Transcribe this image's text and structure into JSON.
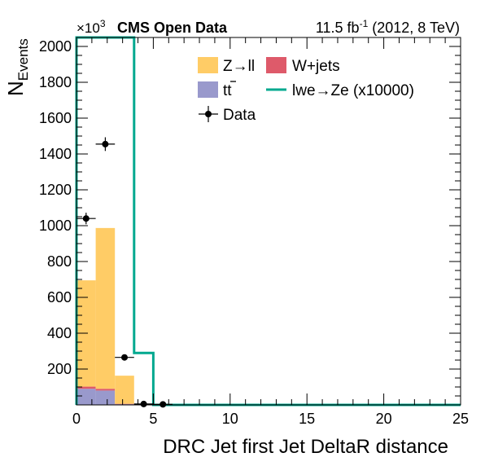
{
  "header": {
    "exponent_prefix": "×10",
    "exponent_power": "3",
    "experiment": "CMS Open Data",
    "lumi_value": "11.5 fb",
    "lumi_power": "-1",
    "lumi_rest": " (2012, 8 TeV)"
  },
  "chart_data": {
    "type": "bar",
    "title": "",
    "xlabel": "DRC Jet first Jet DeltaR distance",
    "ylabel_main": "N",
    "ylabel_sub": "Events",
    "xlim": [
      0,
      25
    ],
    "ylim": [
      0,
      2050
    ],
    "y_scale_note": "×10^3",
    "xticks": [
      0,
      5,
      10,
      15,
      20,
      25
    ],
    "yticks": [
      200,
      400,
      600,
      800,
      1000,
      1200,
      1400,
      1600,
      1800,
      2000
    ],
    "bin_edges": [
      0,
      1.25,
      2.5,
      3.75,
      5.0
    ],
    "stack": [
      {
        "name": "t̅t",
        "name_main": "t",
        "name_bar": "t",
        "color": "#9999cc",
        "values": [
          90,
          80,
          5,
          0
        ]
      },
      {
        "name": "W+jets",
        "color": "#de5a6a",
        "values": [
          12,
          10,
          1,
          0
        ]
      },
      {
        "name": "Z→ll",
        "color": "#ffcc66",
        "values": [
          593,
          897,
          157,
          2
        ]
      }
    ],
    "signal": {
      "name": "lwe→Ze (x10000)",
      "color": "#00a88f",
      "edges": [
        0,
        3.75,
        5.0,
        25
      ],
      "values": [
        2400,
        290,
        0
      ],
      "note_offscale": "first bin exceeds y range"
    },
    "data_points": {
      "name": "Data",
      "x": [
        0.625,
        1.875,
        3.125,
        4.375,
        5.625
      ],
      "y": [
        1040,
        1455,
        265,
        5,
        3
      ],
      "xerr": 0.625
    },
    "legend_placement": "top-right",
    "legend": {
      "zll": "Z→ll",
      "wjets": "W+jets",
      "tt": "t",
      "signal": "lwe→Ze (x10000)",
      "data": "Data"
    }
  }
}
